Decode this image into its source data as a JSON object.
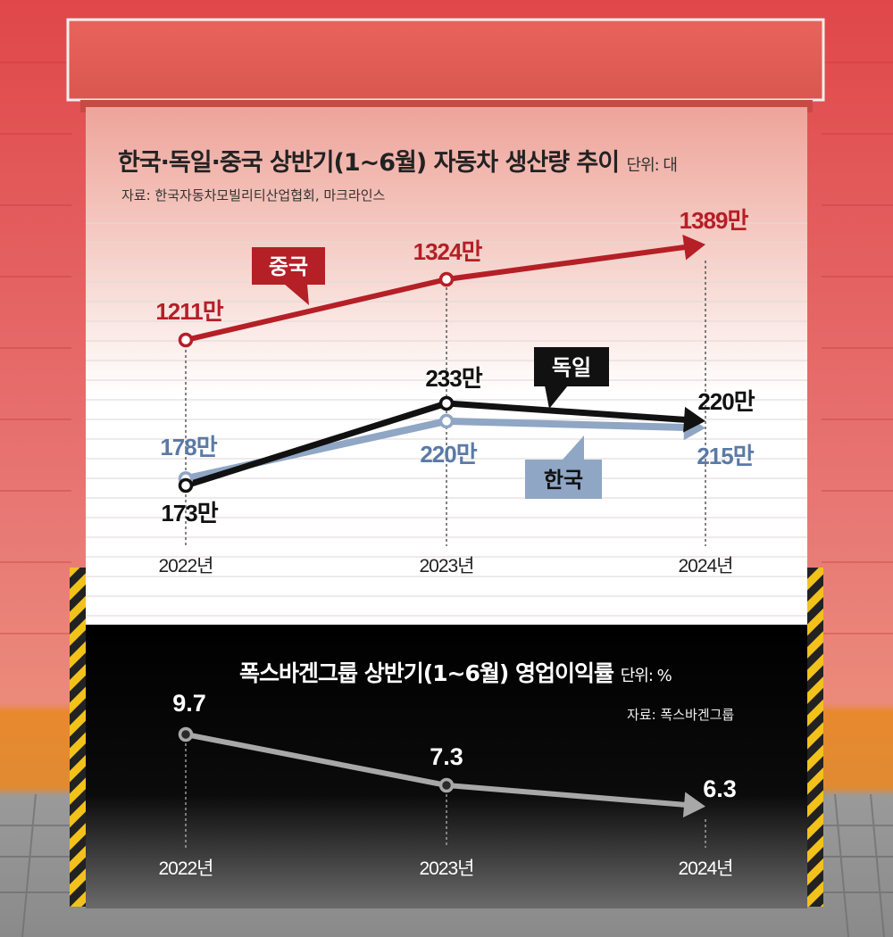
{
  "top_chart": {
    "title": "한국·독일·중국 상반기(1~6월) 자동차 생산량 추이",
    "unit": "단위: 대",
    "source": "자료: 한국자동차모빌리티산업협회, 마크라인스",
    "colors": {
      "china": "#b51f26",
      "germany": "#111111",
      "korea": "#8fa6c4",
      "korea_text": "#5a7aa6"
    }
  },
  "bottom_chart": {
    "title": "폭스바겐그룹 상반기(1~6월) 영업이익률",
    "unit": "단위: %",
    "source": "자료: 폭스바겐그룹",
    "color": "#a8a8a8"
  },
  "chart_data": [
    {
      "type": "line",
      "categories": [
        "2022년",
        "2023년",
        "2024년"
      ],
      "series": [
        {
          "name": "중국",
          "values": [
            12110000,
            13240000,
            13890000
          ],
          "labels": [
            "1211만",
            "1324만",
            "1389만"
          ]
        },
        {
          "name": "독일",
          "values": [
            1730000,
            2330000,
            2200000
          ],
          "labels": [
            "173만",
            "233만",
            "220만"
          ]
        },
        {
          "name": "한국",
          "values": [
            1780000,
            2200000,
            2150000
          ],
          "labels": [
            "178만",
            "220만",
            "215만"
          ]
        }
      ],
      "title": "한국·독일·중국 상반기(1~6월) 자동차 생산량 추이",
      "unit": "단위: 대"
    },
    {
      "type": "line",
      "categories": [
        "2022년",
        "2023년",
        "2024년"
      ],
      "series": [
        {
          "values": [
            9.7,
            7.3,
            6.3
          ],
          "labels": [
            "9.7",
            "7.3",
            "6.3"
          ]
        }
      ],
      "title": "폭스바겐그룹 상반기(1~6월) 영업이익률",
      "unit": "단위: %"
    }
  ]
}
